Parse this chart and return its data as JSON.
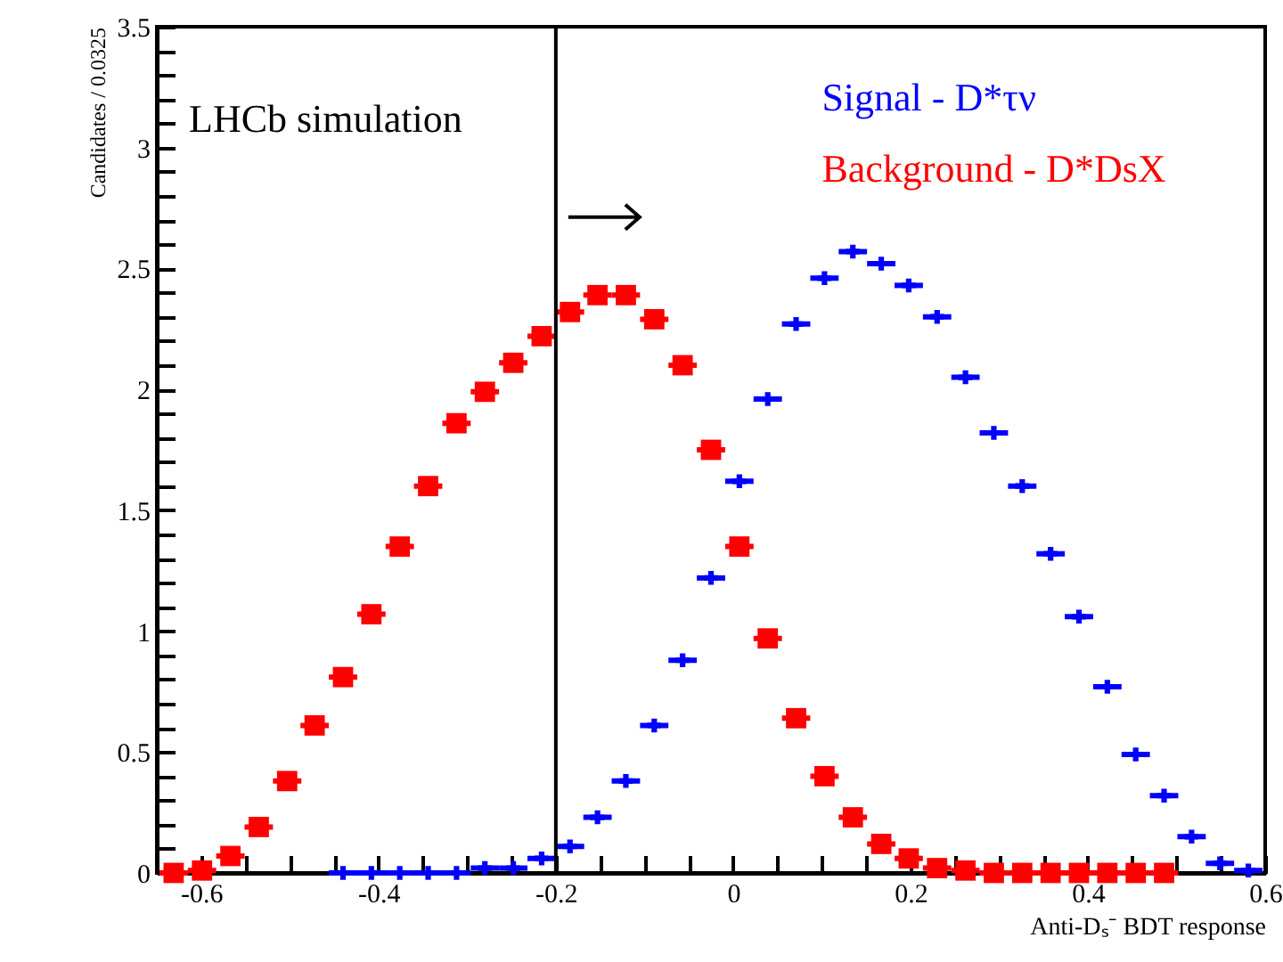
{
  "chart_data": {
    "type": "scatter",
    "xlabel": "Anti-Dₛ⁻ BDT response",
    "ylabel": "Candidates / 0.0325",
    "legend": "top right",
    "annotations": [
      "LHCb simulation"
    ],
    "x": [
      -0.631,
      -0.599,
      -0.567,
      -0.535,
      -0.503,
      -0.472,
      -0.44,
      -0.408,
      -0.376,
      -0.344,
      -0.312,
      -0.28,
      -0.248,
      -0.216,
      -0.184,
      -0.153,
      -0.121,
      -0.089,
      -0.057,
      -0.025,
      0.007,
      0.039,
      0.071,
      0.103,
      0.135,
      0.167,
      0.198,
      0.23,
      0.262,
      0.294,
      0.326,
      0.358,
      0.39,
      0.422,
      0.454,
      0.486,
      0.517,
      0.549,
      0.581
    ],
    "series": [
      {
        "name": "Signal - D*τν",
        "color": "#0000ff",
        "marker": "cross",
        "values": [
          null,
          null,
          null,
          null,
          null,
          null,
          0,
          0,
          0,
          0,
          0,
          0.02,
          0.02,
          0.06,
          0.11,
          0.23,
          0.38,
          0.61,
          0.88,
          1.22,
          1.62,
          1.96,
          2.27,
          2.46,
          2.57,
          2.52,
          2.43,
          2.3,
          2.05,
          1.82,
          1.6,
          1.32,
          1.06,
          0.77,
          0.49,
          0.32,
          0.15,
          0.04,
          0.01
        ],
        "xerrors": [
          null,
          null,
          null,
          null,
          null,
          null,
          0.016,
          0.016,
          0.016,
          0.016,
          0.016,
          0.016,
          0.016,
          0.016,
          0.016,
          0.016,
          0.016,
          0.016,
          0.016,
          0.016,
          0.016,
          0.016,
          0.016,
          0.016,
          0.016,
          0.016,
          0.016,
          0.016,
          0.016,
          0.016,
          0.016,
          0.016,
          0.016,
          0.016,
          0.016,
          0.016,
          0.016,
          0.016,
          0.016
        ]
      },
      {
        "name": "Background - D*DsX",
        "color": "#ff0000",
        "marker": "square",
        "values": [
          0,
          0.01,
          0.07,
          0.19,
          0.38,
          0.61,
          0.81,
          1.07,
          1.35,
          1.6,
          1.86,
          1.99,
          2.11,
          2.22,
          2.32,
          2.39,
          2.39,
          2.29,
          2.1,
          1.75,
          1.35,
          0.97,
          0.64,
          0.4,
          0.23,
          0.12,
          0.06,
          0.02,
          0.01,
          0,
          0,
          0,
          0,
          0,
          0,
          0,
          null,
          null,
          null
        ],
        "xerrors": [
          0.016,
          0.016,
          0.016,
          0.016,
          0.016,
          0.016,
          0.016,
          0.016,
          0.016,
          0.016,
          0.016,
          0.016,
          0.016,
          0.016,
          0.016,
          0.016,
          0.016,
          0.016,
          0.016,
          0.016,
          0.016,
          0.016,
          0.016,
          0.016,
          0.016,
          0.016,
          0.016,
          0.016,
          0.016,
          0.016,
          0.016,
          0.016,
          0.016,
          0.016,
          0.016,
          0.016,
          null,
          null,
          null
        ]
      }
    ],
    "ref_lines": [
      {
        "axis": "x",
        "value": -0.2,
        "color": "#000000"
      }
    ],
    "xlim": [
      -0.65,
      0.6
    ],
    "xticks": [
      -0.6,
      {
        "value": -0.55,
        "label": null
      },
      {
        "value": -0.5,
        "label": null
      },
      {
        "value": -0.45,
        "label": null
      },
      -0.4,
      {
        "value": -0.35,
        "label": null
      },
      {
        "value": -0.3,
        "label": null
      },
      {
        "value": -0.25,
        "label": null
      },
      -0.2,
      {
        "value": -0.15,
        "label": null
      },
      {
        "value": -0.1,
        "label": null
      },
      {
        "value": -0.05,
        "label": null
      },
      0,
      {
        "value": 0.05,
        "label": null
      },
      {
        "value": 0.1,
        "label": null
      },
      {
        "value": 0.15,
        "label": null
      },
      0.2,
      {
        "value": 0.25,
        "label": null
      },
      {
        "value": 0.3,
        "label": null
      },
      {
        "value": 0.35,
        "label": null
      },
      0.4,
      {
        "value": 0.45,
        "label": null
      },
      {
        "value": 0.5,
        "label": null
      },
      {
        "value": 0.55,
        "label": null
      },
      0.6
    ],
    "ylim": [
      0,
      3.5
    ],
    "yticks": [
      0,
      {
        "value": 0.1,
        "label": null
      },
      {
        "value": 0.2,
        "label": null
      },
      {
        "value": 0.3,
        "label": null
      },
      {
        "value": 0.4,
        "label": null
      },
      0.5,
      {
        "value": 0.6,
        "label": null
      },
      {
        "value": 0.7,
        "label": null
      },
      {
        "value": 0.8,
        "label": null
      },
      {
        "value": 0.9,
        "label": null
      },
      1,
      {
        "value": 1.1,
        "label": null
      },
      {
        "value": 1.2,
        "label": null
      },
      {
        "value": 1.3,
        "label": null
      },
      {
        "value": 1.4,
        "label": null
      },
      1.5,
      {
        "value": 1.6,
        "label": null
      },
      {
        "value": 1.7,
        "label": null
      },
      {
        "value": 1.8,
        "label": null
      },
      {
        "value": 1.9,
        "label": null
      },
      2,
      {
        "value": 2.1,
        "label": null
      },
      {
        "value": 2.2,
        "label": null
      },
      {
        "value": 2.3,
        "label": null
      },
      {
        "value": 2.4,
        "label": null
      },
      2.5,
      {
        "value": 2.6,
        "label": null
      },
      {
        "value": 2.7,
        "label": null
      },
      {
        "value": 2.8,
        "label": null
      },
      {
        "value": 2.9,
        "label": null
      },
      3,
      {
        "value": 3.1,
        "label": null
      },
      {
        "value": 3.2,
        "label": null
      },
      {
        "value": 3.3,
        "label": null
      },
      {
        "value": 3.4,
        "label": null
      },
      3.5
    ]
  }
}
